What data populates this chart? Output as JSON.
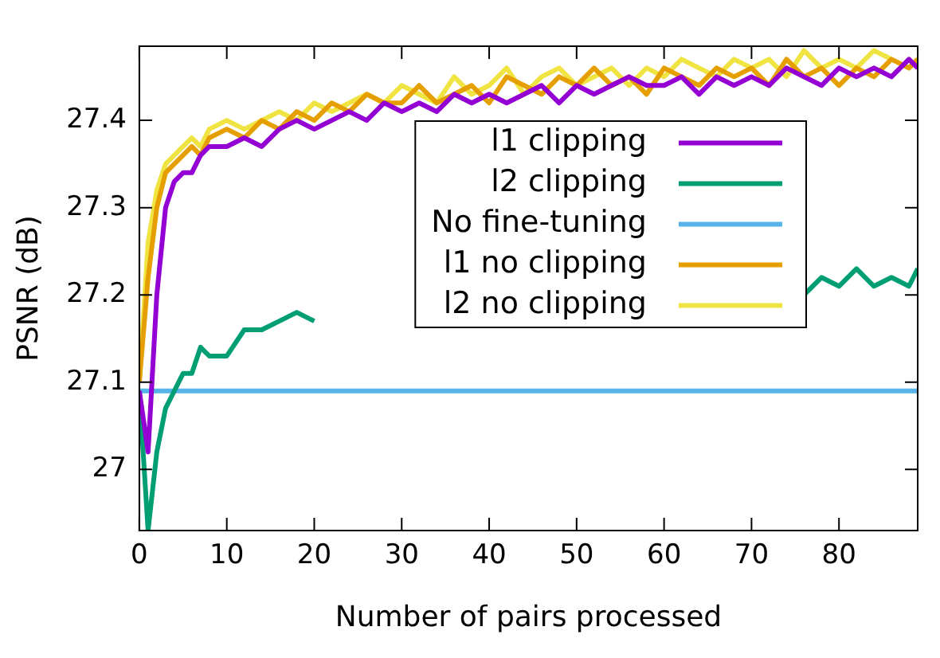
{
  "chart_data": {
    "type": "line",
    "xlabel": "Number of pairs processed",
    "ylabel": "PSNR (dB)",
    "x": [
      0,
      1,
      2,
      3,
      4,
      5,
      6,
      7,
      8,
      10,
      12,
      14,
      16,
      18,
      20,
      22,
      24,
      26,
      28,
      30,
      32,
      34,
      36,
      38,
      40,
      42,
      44,
      46,
      48,
      50,
      52,
      54,
      56,
      58,
      60,
      62,
      64,
      66,
      68,
      70,
      72,
      74,
      76,
      78,
      80,
      82,
      84,
      86,
      88,
      89
    ],
    "xlim": [
      0,
      89
    ],
    "xticks": [
      0,
      10,
      20,
      30,
      40,
      50,
      60,
      70,
      80
    ],
    "ylim": [
      26.93,
      27.485
    ],
    "yticks": [
      27,
      27.1,
      27.2,
      27.3,
      27.4
    ],
    "grid": false,
    "legend": "top right",
    "marker": "none",
    "line_style": "solid",
    "series": [
      {
        "name": "l1 clipping",
        "color": "#9400d3",
        "values": [
          27.09,
          27.02,
          27.2,
          27.3,
          27.33,
          27.34,
          27.34,
          27.36,
          27.37,
          27.37,
          27.38,
          27.37,
          27.39,
          27.4,
          27.39,
          27.4,
          27.41,
          27.4,
          27.42,
          27.41,
          27.42,
          27.41,
          27.43,
          27.42,
          27.43,
          27.42,
          27.43,
          27.44,
          27.42,
          27.44,
          27.43,
          27.44,
          27.45,
          27.44,
          27.44,
          27.45,
          27.43,
          27.45,
          27.44,
          27.45,
          27.44,
          27.46,
          27.45,
          27.44,
          27.46,
          27.45,
          27.46,
          27.45,
          27.47,
          27.46
        ]
      },
      {
        "name": "l2 clipping",
        "color": "#009e73",
        "values": [
          27.09,
          26.93,
          27.02,
          27.07,
          27.09,
          27.11,
          27.11,
          27.14,
          27.13,
          27.13,
          27.16,
          27.16,
          27.17,
          27.18,
          27.17,
          null,
          null,
          null,
          null,
          null,
          null,
          null,
          null,
          null,
          null,
          null,
          null,
          null,
          null,
          null,
          null,
          null,
          null,
          null,
          null,
          null,
          null,
          null,
          null,
          null,
          null,
          null,
          27.2,
          27.22,
          27.21,
          27.23,
          27.21,
          27.22,
          27.21,
          27.23
        ]
      },
      {
        "name": "No fine-tuning",
        "color": "#56b4e9",
        "x": [
          0,
          89
        ],
        "values": [
          27.09,
          27.09
        ]
      },
      {
        "name": "l1 no clipping",
        "color": "#e69f00",
        "values": [
          27.1,
          27.22,
          27.3,
          27.34,
          27.35,
          27.36,
          27.37,
          27.36,
          27.38,
          27.39,
          27.38,
          27.4,
          27.39,
          27.41,
          27.4,
          27.42,
          27.41,
          27.43,
          27.42,
          27.42,
          27.44,
          27.42,
          27.43,
          27.44,
          27.42,
          27.45,
          27.44,
          27.43,
          27.45,
          27.44,
          27.46,
          27.44,
          27.45,
          27.43,
          27.46,
          27.45,
          27.44,
          27.46,
          27.45,
          27.46,
          27.44,
          27.47,
          27.45,
          27.46,
          27.44,
          27.46,
          27.45,
          27.47,
          27.46,
          27.47
        ]
      },
      {
        "name": "l2 no clipping",
        "color": "#f0e442",
        "values": [
          27.1,
          27.26,
          27.32,
          27.35,
          27.36,
          27.37,
          27.38,
          27.37,
          27.39,
          27.4,
          27.39,
          27.4,
          27.41,
          27.4,
          27.42,
          27.41,
          27.42,
          27.43,
          27.42,
          27.44,
          27.43,
          27.42,
          27.45,
          27.43,
          27.44,
          27.46,
          27.43,
          27.45,
          27.46,
          27.44,
          27.45,
          27.46,
          27.44,
          27.46,
          27.45,
          27.47,
          27.46,
          27.45,
          27.47,
          27.46,
          27.47,
          27.45,
          27.48,
          27.46,
          27.47,
          27.46,
          27.48,
          27.47,
          27.46,
          27.47
        ]
      }
    ]
  }
}
